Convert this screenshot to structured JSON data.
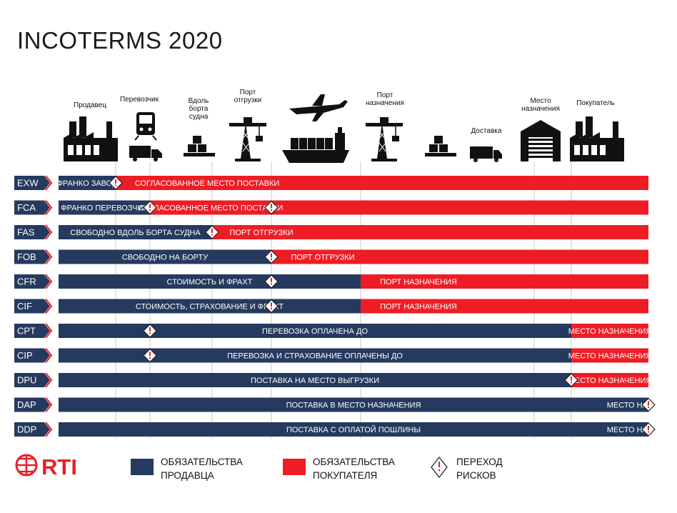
{
  "title": "INCOTERMS  2020",
  "colors": {
    "seller": "#253a5e",
    "buyer": "#ee1d25",
    "code_bg": "#253a5e",
    "grid": "#c8c8c8"
  },
  "stages": [
    {
      "label": "Продавец",
      "icon": "factory-icon"
    },
    {
      "label": "Перевозчик",
      "icon": "train-truck-icon"
    },
    {
      "label": "Вдоль борта судна",
      "icon": "cargo-boxes-icon"
    },
    {
      "label": "Порт отгрузки",
      "icon": "port-crane-icon"
    },
    {
      "label": "",
      "icon": "plane-ship-icon"
    },
    {
      "label": "Порт назначения",
      "icon": "port-crane-icon"
    },
    {
      "label": "",
      "icon": "cargo-boxes-icon"
    },
    {
      "label": "Доставка",
      "icon": "delivery-truck-icon"
    },
    {
      "label": "Место назначения",
      "icon": "warehouse-icon"
    },
    {
      "label": "Покупатель",
      "icon": "factory-icon"
    }
  ],
  "terms": [
    {
      "code": "EXW",
      "risk": 0,
      "seller_text": "Франко завод",
      "buyer_text": "Согласованное место поставки"
    },
    {
      "code": "FCA",
      "risk": 1,
      "risk2": 3,
      "seller_text": "Франко перевозчик",
      "buyer_text": "Согласованное место поставки"
    },
    {
      "code": "FAS",
      "risk": 2,
      "seller_text": "Свободно вдоль борта судна",
      "buyer_text": "Порт отгрузки"
    },
    {
      "code": "FOB",
      "risk": 3,
      "seller_text": "Свободно на борту",
      "buyer_text": "Порт отгрузки"
    },
    {
      "code": "CFR",
      "risk": 3,
      "seller_end": 4,
      "seller_text": "Стоимость и фрахт",
      "buyer_text": "Порт назначения"
    },
    {
      "code": "CIF",
      "risk": 3,
      "seller_end": 4,
      "seller_text": "Стоимость, страхование и фрахт",
      "buyer_text": "Порт назначения"
    },
    {
      "code": "CPT",
      "risk": 1,
      "seller_end": 8,
      "seller_text": "Перевозка оплачена до",
      "buyer_text": "Место назначения"
    },
    {
      "code": "CIP",
      "risk": 1,
      "seller_end": 8,
      "seller_text": "Перевозка и страхование оплачены до",
      "buyer_text": "Место назначения"
    },
    {
      "code": "DPU",
      "risk": 8,
      "seller_end": 8,
      "seller_text": "Поставка на место выгрузки",
      "buyer_text": "Место назначения"
    },
    {
      "code": "DAP",
      "risk": 9,
      "seller_end": 9,
      "seller_text": "Поставка в место назначения",
      "buyer_text": "Место назначения"
    },
    {
      "code": "DDP",
      "risk": 9,
      "seller_end": 9,
      "seller_text": "Поставка с оплатой пошлины",
      "buyer_text": "Место назначения"
    }
  ],
  "legend": {
    "brand": "RTI",
    "seller": "ОБЯЗАТЕЛЬСТВА ПРОДАВЦА",
    "buyer": "ОБЯЗАТЕЛЬСТВА ПОКУПАТЕЛЯ",
    "risk": "ПЕРЕХОД РИСКОВ"
  }
}
